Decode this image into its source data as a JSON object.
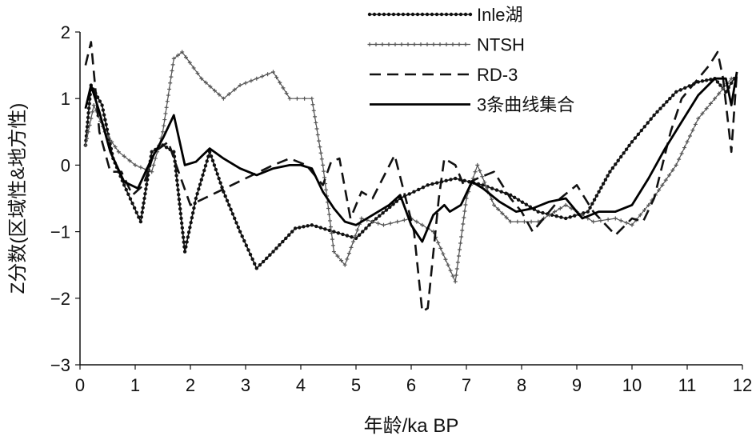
{
  "chart_data": {
    "type": "line",
    "xlabel": "年龄/ka BP",
    "ylabel": "Z分数(区域性&地方性)",
    "xlim": [
      0,
      12
    ],
    "ylim": [
      -3,
      2
    ],
    "xticks": [
      "0",
      "1",
      "2",
      "3",
      "4",
      "5",
      "6",
      "7",
      "8",
      "9",
      "10",
      "11",
      "12"
    ],
    "yticks": [
      "-3",
      "-2",
      "-1",
      "0",
      "1",
      "2"
    ],
    "legend_position": "top-right",
    "grid": false,
    "series": [
      {
        "name": "Inle湖",
        "style": "dotted-marker",
        "color": "#111111",
        "points": [
          [
            0.1,
            0.3
          ],
          [
            0.2,
            1.2
          ],
          [
            0.4,
            0.9
          ],
          [
            0.6,
            0.1
          ],
          [
            0.8,
            -0.3
          ],
          [
            1.1,
            -0.85
          ],
          [
            1.3,
            0.2
          ],
          [
            1.5,
            0.3
          ],
          [
            1.7,
            0.2
          ],
          [
            1.9,
            -1.3
          ],
          [
            2.1,
            -0.5
          ],
          [
            2.35,
            0.2
          ],
          [
            2.6,
            -0.4
          ],
          [
            2.9,
            -1.0
          ],
          [
            3.2,
            -1.55
          ],
          [
            3.5,
            -1.3
          ],
          [
            3.9,
            -0.95
          ],
          [
            4.2,
            -0.9
          ],
          [
            4.6,
            -1.0
          ],
          [
            5.0,
            -1.1
          ],
          [
            5.3,
            -0.85
          ],
          [
            5.8,
            -0.5
          ],
          [
            6.3,
            -0.3
          ],
          [
            6.8,
            -0.2
          ],
          [
            7.3,
            -0.3
          ],
          [
            7.8,
            -0.45
          ],
          [
            8.3,
            -0.7
          ],
          [
            8.8,
            -0.8
          ],
          [
            9.2,
            -0.7
          ],
          [
            9.6,
            -0.1
          ],
          [
            10.0,
            0.35
          ],
          [
            10.4,
            0.75
          ],
          [
            10.8,
            1.1
          ],
          [
            11.2,
            1.25
          ],
          [
            11.5,
            1.3
          ],
          [
            11.7,
            1.1
          ],
          [
            11.85,
            1.3
          ]
        ]
      },
      {
        "name": "NTSH",
        "style": "dotted-cross",
        "color": "#555555",
        "points": [
          [
            0.1,
            0.3
          ],
          [
            0.25,
            0.9
          ],
          [
            0.45,
            0.5
          ],
          [
            0.7,
            0.2
          ],
          [
            1.0,
            0.0
          ],
          [
            1.3,
            -0.1
          ],
          [
            1.5,
            0.5
          ],
          [
            1.7,
            1.6
          ],
          [
            1.85,
            1.7
          ],
          [
            2.2,
            1.3
          ],
          [
            2.6,
            1.0
          ],
          [
            2.9,
            1.2
          ],
          [
            3.2,
            1.3
          ],
          [
            3.5,
            1.4
          ],
          [
            3.8,
            1.0
          ],
          [
            4.2,
            1.0
          ],
          [
            4.4,
            0.0
          ],
          [
            4.6,
            -1.3
          ],
          [
            4.8,
            -1.5
          ],
          [
            5.1,
            -0.8
          ],
          [
            5.5,
            -0.9
          ],
          [
            6.0,
            -0.8
          ],
          [
            6.4,
            -1.0
          ],
          [
            6.8,
            -1.75
          ],
          [
            7.0,
            -0.5
          ],
          [
            7.2,
            0.0
          ],
          [
            7.5,
            -0.6
          ],
          [
            7.8,
            -0.85
          ],
          [
            8.3,
            -0.85
          ],
          [
            8.8,
            -0.6
          ],
          [
            9.3,
            -0.85
          ],
          [
            9.7,
            -0.8
          ],
          [
            10.0,
            -0.9
          ],
          [
            10.3,
            -0.6
          ],
          [
            10.8,
            0.0
          ],
          [
            11.2,
            0.7
          ],
          [
            11.5,
            1.0
          ],
          [
            11.8,
            1.3
          ]
        ]
      },
      {
        "name": "RD-3",
        "style": "dashed",
        "color": "#111111",
        "points": [
          [
            0.1,
            1.5
          ],
          [
            0.2,
            1.85
          ],
          [
            0.35,
            0.5
          ],
          [
            0.55,
            -0.1
          ],
          [
            0.75,
            -0.1
          ],
          [
            0.95,
            -0.45
          ],
          [
            1.15,
            -0.3
          ],
          [
            1.35,
            0.2
          ],
          [
            1.6,
            0.35
          ],
          [
            1.7,
            0.1
          ],
          [
            2.0,
            -0.6
          ],
          [
            2.5,
            -0.4
          ],
          [
            3.0,
            -0.2
          ],
          [
            3.5,
            0.0
          ],
          [
            3.8,
            0.1
          ],
          [
            4.1,
            0.0
          ],
          [
            4.4,
            -0.3
          ],
          [
            4.55,
            0.05
          ],
          [
            4.7,
            0.1
          ],
          [
            4.9,
            -0.8
          ],
          [
            5.1,
            -0.4
          ],
          [
            5.3,
            -0.5
          ],
          [
            5.7,
            0.15
          ],
          [
            5.9,
            -0.5
          ],
          [
            6.05,
            -1.0
          ],
          [
            6.2,
            -2.2
          ],
          [
            6.3,
            -2.15
          ],
          [
            6.5,
            -0.5
          ],
          [
            6.6,
            0.1
          ],
          [
            6.8,
            0.0
          ],
          [
            6.95,
            -0.3
          ],
          [
            7.2,
            -0.2
          ],
          [
            7.5,
            -0.1
          ],
          [
            7.8,
            -0.5
          ],
          [
            8.0,
            -0.7
          ],
          [
            8.2,
            -1.0
          ],
          [
            8.4,
            -0.8
          ],
          [
            8.7,
            -0.5
          ],
          [
            9.0,
            -0.3
          ],
          [
            9.3,
            -0.7
          ],
          [
            9.7,
            -1.05
          ],
          [
            10.0,
            -0.8
          ],
          [
            10.2,
            -0.85
          ],
          [
            10.4,
            -0.5
          ],
          [
            10.7,
            0.5
          ],
          [
            10.9,
            1.0
          ],
          [
            11.2,
            1.3
          ],
          [
            11.4,
            1.5
          ],
          [
            11.55,
            1.7
          ],
          [
            11.65,
            1.3
          ],
          [
            11.8,
            0.2
          ],
          [
            11.9,
            1.4
          ]
        ]
      },
      {
        "name": "3条曲线集合",
        "style": "solid",
        "color": "#000000",
        "points": [
          [
            0.1,
            0.85
          ],
          [
            0.2,
            1.2
          ],
          [
            0.35,
            0.8
          ],
          [
            0.55,
            0.2
          ],
          [
            0.8,
            -0.25
          ],
          [
            1.05,
            -0.35
          ],
          [
            1.3,
            0.1
          ],
          [
            1.5,
            0.4
          ],
          [
            1.7,
            0.75
          ],
          [
            1.9,
            0.0
          ],
          [
            2.1,
            0.05
          ],
          [
            2.35,
            0.25
          ],
          [
            2.6,
            0.1
          ],
          [
            2.9,
            -0.05
          ],
          [
            3.2,
            -0.15
          ],
          [
            3.5,
            -0.05
          ],
          [
            3.8,
            0.0
          ],
          [
            4.0,
            0.0
          ],
          [
            4.2,
            -0.05
          ],
          [
            4.4,
            -0.4
          ],
          [
            4.6,
            -0.65
          ],
          [
            4.8,
            -0.85
          ],
          [
            5.0,
            -0.9
          ],
          [
            5.3,
            -0.75
          ],
          [
            5.6,
            -0.6
          ],
          [
            5.8,
            -0.45
          ],
          [
            6.0,
            -0.9
          ],
          [
            6.2,
            -1.15
          ],
          [
            6.4,
            -0.75
          ],
          [
            6.6,
            -0.6
          ],
          [
            6.7,
            -0.7
          ],
          [
            6.9,
            -0.6
          ],
          [
            7.1,
            -0.25
          ],
          [
            7.3,
            -0.35
          ],
          [
            7.6,
            -0.55
          ],
          [
            7.9,
            -0.7
          ],
          [
            8.2,
            -0.65
          ],
          [
            8.5,
            -0.55
          ],
          [
            8.8,
            -0.5
          ],
          [
            9.1,
            -0.8
          ],
          [
            9.4,
            -0.7
          ],
          [
            9.7,
            -0.7
          ],
          [
            10.0,
            -0.6
          ],
          [
            10.3,
            -0.2
          ],
          [
            10.6,
            0.25
          ],
          [
            10.9,
            0.65
          ],
          [
            11.2,
            1.05
          ],
          [
            11.5,
            1.3
          ],
          [
            11.7,
            1.3
          ],
          [
            11.8,
            0.9
          ],
          [
            11.9,
            1.4
          ]
        ]
      }
    ]
  }
}
